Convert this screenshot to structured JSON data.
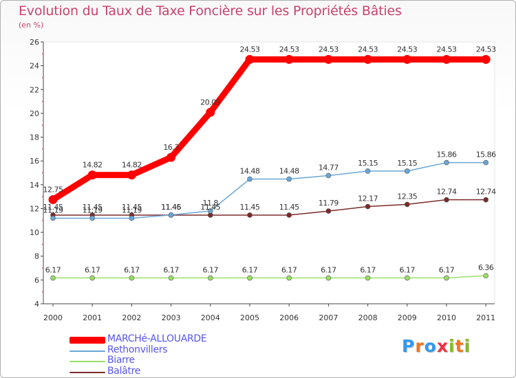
{
  "chart_data": {
    "type": "line",
    "title": "Evolution du Taux de Taxe Foncière sur les Propriétés Bâties",
    "ylabel": "(en %)",
    "xlabel": "",
    "categories": [
      "2000",
      "2001",
      "2002",
      "2003",
      "2004",
      "2005",
      "2006",
      "2007",
      "2008",
      "2009",
      "2010",
      "2011"
    ],
    "ylim": [
      4,
      26
    ],
    "yticks": [
      4,
      6,
      8,
      10,
      12,
      14,
      16,
      18,
      20,
      22,
      24,
      26
    ],
    "series": [
      {
        "name": "MARCHé-ALLOUARDE",
        "color": "#ff0000",
        "values": [
          12.75,
          14.82,
          14.82,
          16.3,
          20.09,
          24.53,
          24.53,
          24.53,
          24.53,
          24.53,
          24.53,
          24.53
        ],
        "labels": [
          "12.75",
          "14.82",
          "14.82",
          "16.3",
          "20.09",
          "24.53",
          "24.53",
          "24.53",
          "24.53",
          "24.53",
          "24.53",
          "24.53"
        ]
      },
      {
        "name": "Rethonvillers",
        "color": "#6aa6d6",
        "values": [
          11.19,
          11.19,
          11.19,
          11.46,
          11.8,
          14.48,
          14.48,
          14.77,
          15.15,
          15.15,
          15.86,
          15.86
        ],
        "labels": [
          "11.19",
          "11.19",
          "11.19",
          "11.46",
          "11.8",
          "14.48",
          "14.48",
          "14.77",
          "15.15",
          "15.15",
          "15.86",
          "15.86"
        ]
      },
      {
        "name": "Biarre",
        "color": "#99dd66",
        "values": [
          6.17,
          6.17,
          6.17,
          6.17,
          6.17,
          6.17,
          6.17,
          6.17,
          6.17,
          6.17,
          6.17,
          6.36
        ],
        "labels": [
          "6.17",
          "6.17",
          "6.17",
          "6.17",
          "6.17",
          "6.17",
          "6.17",
          "6.17",
          "6.17",
          "6.17",
          "6.17",
          "6.36"
        ]
      },
      {
        "name": "Balâtre",
        "color": "#7a2a2a",
        "values": [
          11.45,
          11.45,
          11.45,
          11.45,
          11.45,
          11.45,
          11.45,
          11.79,
          12.17,
          12.35,
          12.74,
          12.74
        ],
        "labels": [
          "11.45",
          "11.45",
          "11.45",
          "11.45",
          "11.45",
          "11.45",
          "11.45",
          "11.79",
          "12.17",
          "12.35",
          "12.74",
          "12.74"
        ]
      }
    ],
    "grid": false,
    "legend": "bottom-left"
  },
  "logo": {
    "text": "Proxiti",
    "letters": [
      "P",
      "r",
      "o",
      "x",
      "i",
      "t",
      "i"
    ],
    "colors": [
      "#3399ee",
      "#ee7722",
      "#3399ee",
      "#ee3344",
      "#88bb22",
      "#ee7722",
      "#88bb22"
    ]
  }
}
